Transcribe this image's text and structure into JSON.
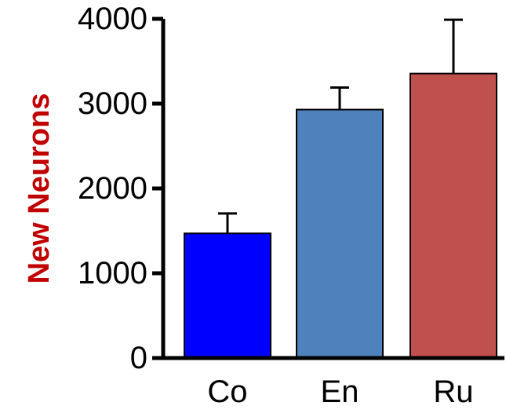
{
  "chart_data": {
    "type": "bar",
    "title": "",
    "xlabel": "",
    "ylabel": "New Neurons",
    "ylabel_color": "#C00000",
    "categories": [
      "Co",
      "En",
      "Ru"
    ],
    "values": [
      1470,
      2930,
      3355
    ],
    "errors": [
      235,
      260,
      635
    ],
    "colors": [
      "#0000FF",
      "#4F81BD",
      "#C0504D"
    ],
    "ylim": [
      0,
      4000
    ],
    "yticks": [
      0,
      1000,
      2000,
      3000,
      4000
    ],
    "ytick_labels": [
      "0",
      "1000",
      "2000",
      "3000",
      "4000"
    ],
    "grid": false,
    "legend": "none"
  }
}
